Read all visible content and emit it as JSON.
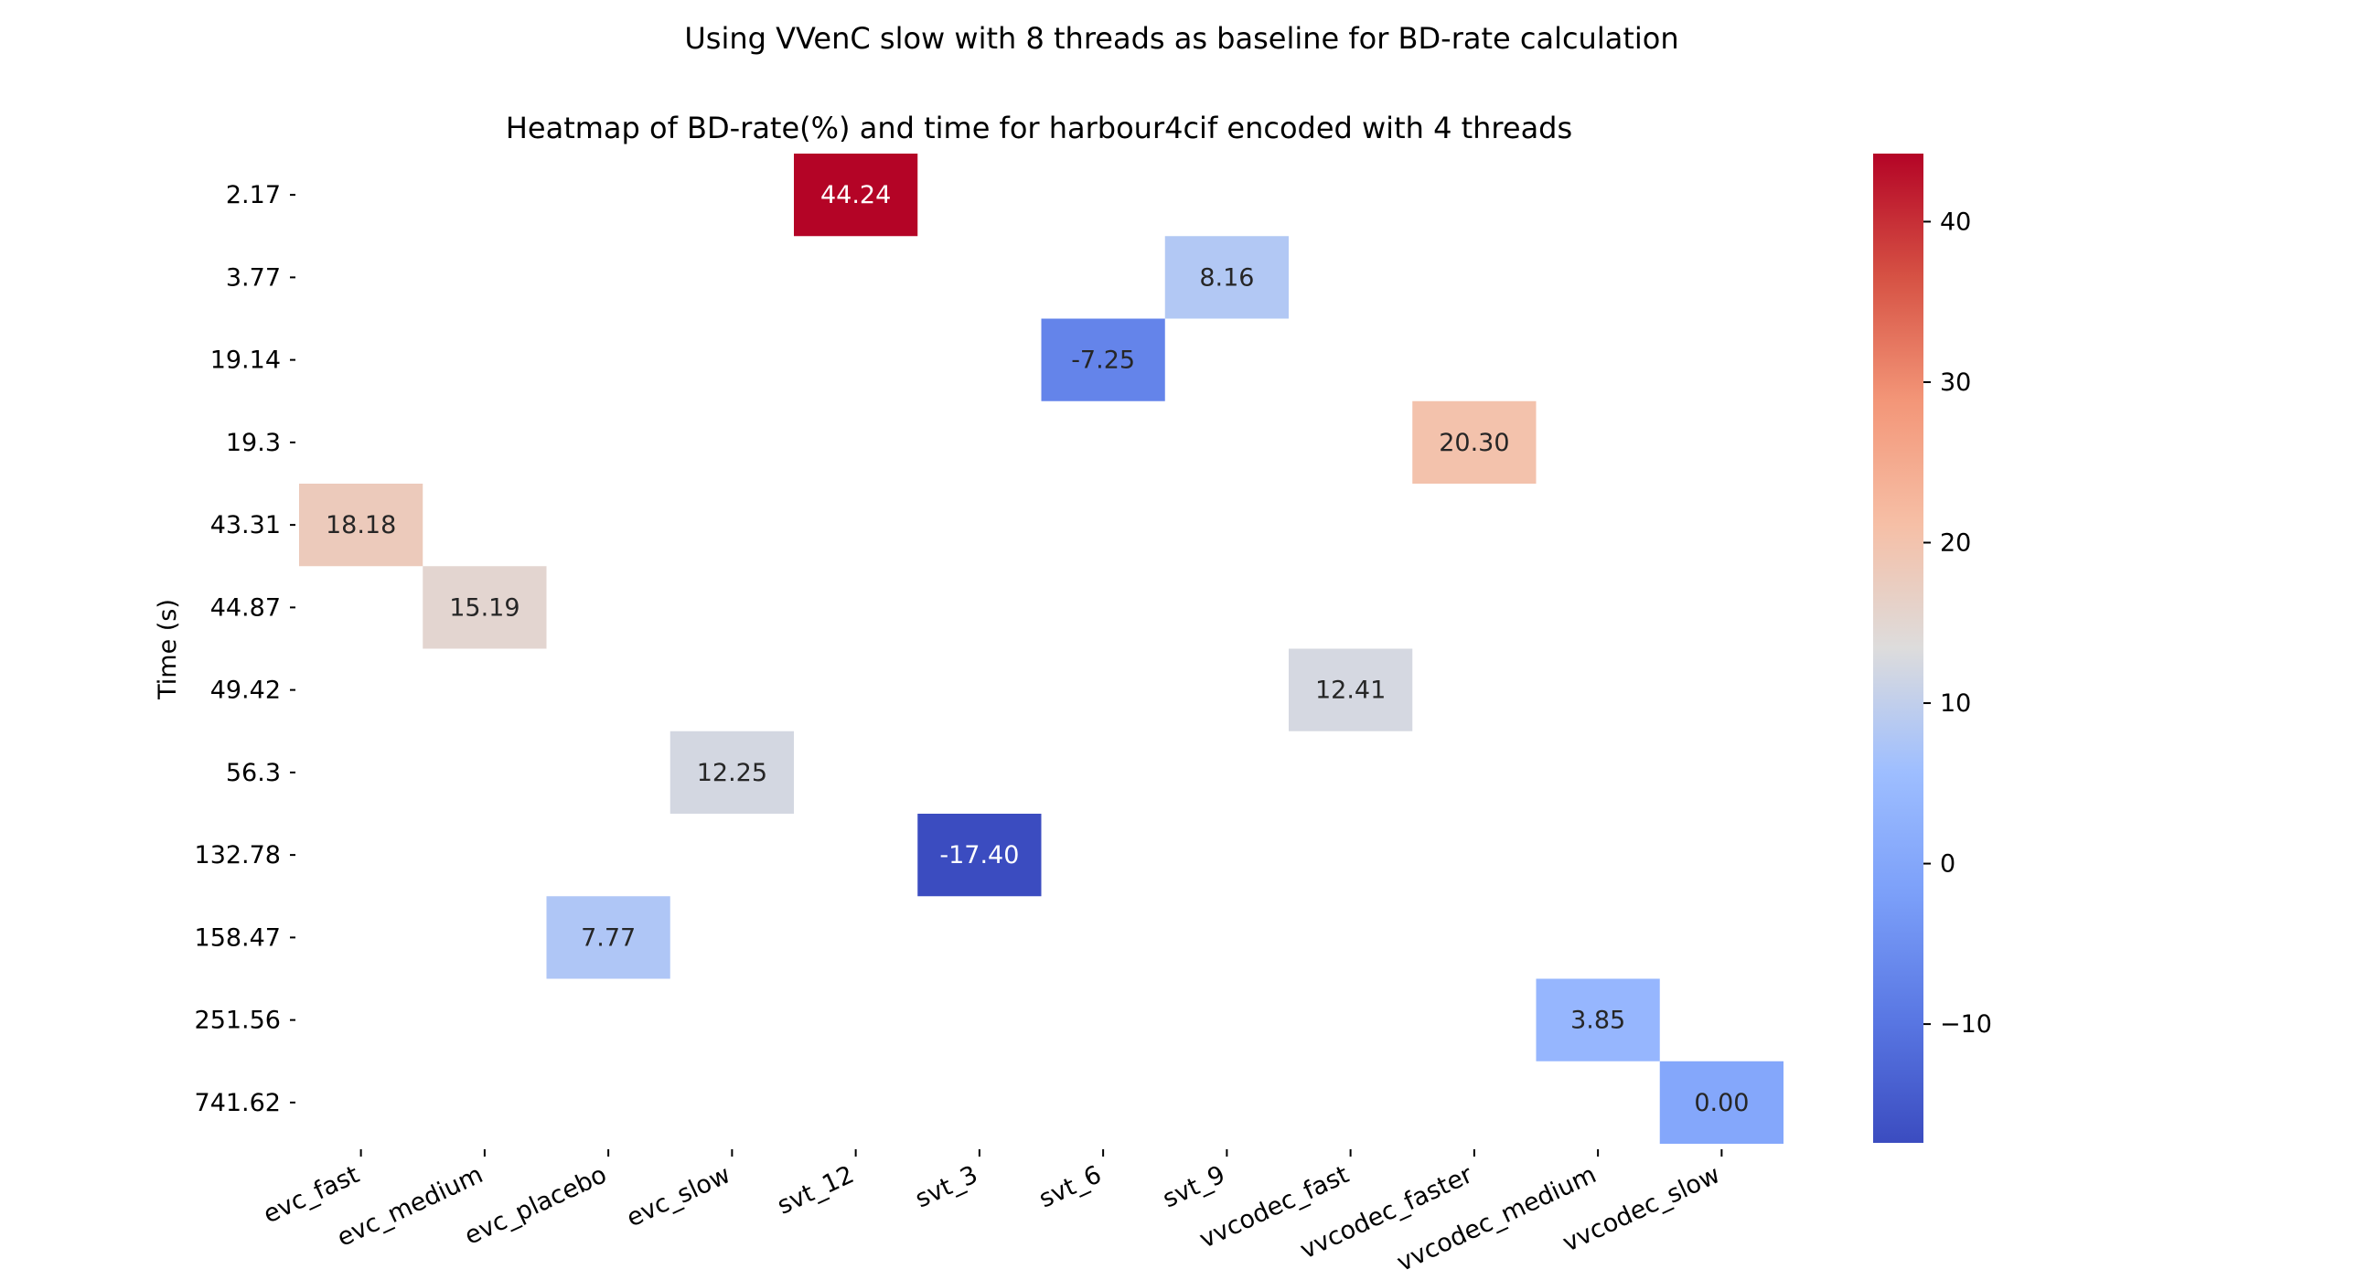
{
  "chart_data": {
    "type": "heatmap",
    "suptitle": "Using VVenC slow with 8 threads as baseline for BD-rate calculation",
    "title": "Heatmap of BD-rate(%) and time for harbour4cif encoded with 4 threads",
    "ylabel": "Time (s)",
    "xlabel": "",
    "x_categories": [
      "evc_fast",
      "evc_medium",
      "evc_placebo",
      "evc_slow",
      "svt_12",
      "svt_3",
      "svt_6",
      "svt_9",
      "vvcodec_fast",
      "vvcodec_faster",
      "vvcodec_medium",
      "vvcodec_slow"
    ],
    "y_categories": [
      "2.17",
      "3.77",
      "19.14",
      "19.3",
      "43.31",
      "44.87",
      "49.42",
      "56.3",
      "132.78",
      "158.47",
      "251.56",
      "741.62"
    ],
    "cells": [
      {
        "x": "svt_12",
        "y": "2.17",
        "value": 44.24,
        "label": "44.24"
      },
      {
        "x": "svt_9",
        "y": "3.77",
        "value": 8.16,
        "label": "8.16"
      },
      {
        "x": "svt_6",
        "y": "19.14",
        "value": -7.25,
        "label": "-7.25"
      },
      {
        "x": "vvcodec_faster",
        "y": "19.3",
        "value": 20.3,
        "label": "20.30"
      },
      {
        "x": "evc_fast",
        "y": "43.31",
        "value": 18.18,
        "label": "18.18"
      },
      {
        "x": "evc_medium",
        "y": "44.87",
        "value": 15.19,
        "label": "15.19"
      },
      {
        "x": "vvcodec_fast",
        "y": "49.42",
        "value": 12.41,
        "label": "12.41"
      },
      {
        "x": "evc_slow",
        "y": "56.3",
        "value": 12.25,
        "label": "12.25"
      },
      {
        "x": "svt_3",
        "y": "132.78",
        "value": -17.4,
        "label": "-17.40"
      },
      {
        "x": "evc_placebo",
        "y": "158.47",
        "value": 7.77,
        "label": "7.77"
      },
      {
        "x": "vvcodec_medium",
        "y": "251.56",
        "value": 3.85,
        "label": "3.85"
      },
      {
        "x": "vvcodec_slow",
        "y": "741.62",
        "value": 0.0,
        "label": "0.00"
      }
    ],
    "colormap": "coolwarm",
    "vmin": -17.4,
    "vmax": 44.24,
    "colorbar_ticks": [
      {
        "value": -10,
        "label": "−10"
      },
      {
        "value": 0,
        "label": "0"
      },
      {
        "value": 10,
        "label": "10"
      },
      {
        "value": 20,
        "label": "20"
      },
      {
        "value": 30,
        "label": "30"
      },
      {
        "value": 40,
        "label": "40"
      }
    ]
  }
}
